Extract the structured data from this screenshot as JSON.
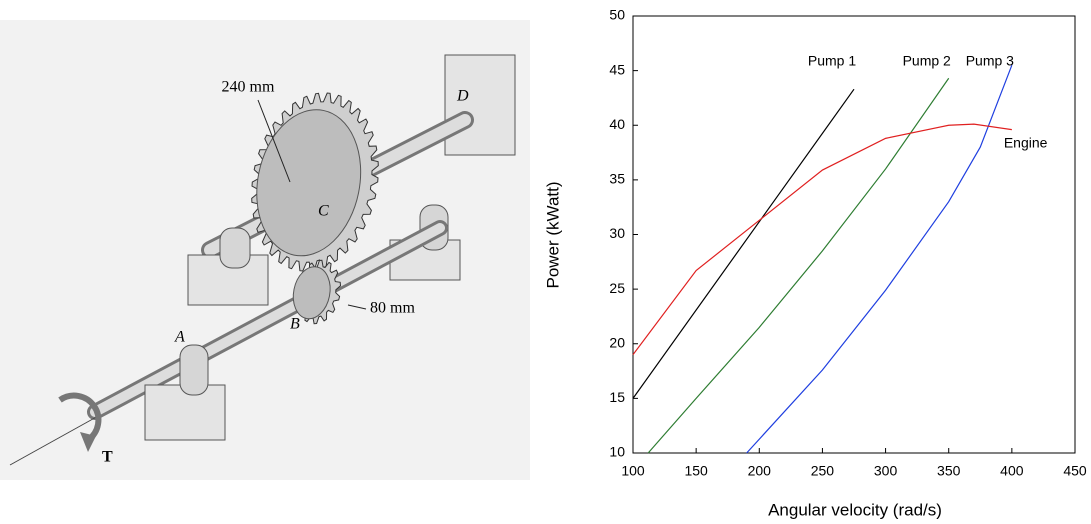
{
  "figure": {
    "labels": [
      "240 mm",
      "D",
      "C",
      "A",
      "B",
      "80 mm",
      "T"
    ]
  },
  "chart_data": {
    "type": "line",
    "xlabel": "Angular velocity (rad/s)",
    "ylabel": "Power (kWatt)",
    "xlim": [
      100,
      450
    ],
    "xticks": [
      100,
      150,
      200,
      250,
      300,
      350,
      400,
      450
    ],
    "ylim": [
      10,
      50
    ],
    "yticks": [
      10,
      15,
      20,
      25,
      30,
      35,
      40,
      45,
      50
    ],
    "series": [
      {
        "name": "Pump 1",
        "color": "#000000",
        "x": [
          100,
          275
        ],
        "values": [
          15,
          43.3
        ]
      },
      {
        "name": "Pump 2",
        "color": "#2e7d32",
        "x": [
          112,
          150,
          200,
          250,
          300,
          350
        ],
        "values": [
          10,
          15,
          21.5,
          28.5,
          36,
          44.3
        ]
      },
      {
        "name": "Pump 3",
        "color": "#1f3fe0",
        "x": [
          190,
          250,
          300,
          350,
          375,
          400
        ],
        "values": [
          10,
          17.6,
          24.9,
          33,
          38,
          45.5
        ]
      },
      {
        "name": "Engine",
        "color": "#e02020",
        "x": [
          100,
          150,
          200,
          250,
          300,
          350,
          370,
          400
        ],
        "values": [
          19,
          26.7,
          31.3,
          35.9,
          38.8,
          40,
          40.1,
          39.6
        ]
      }
    ]
  }
}
